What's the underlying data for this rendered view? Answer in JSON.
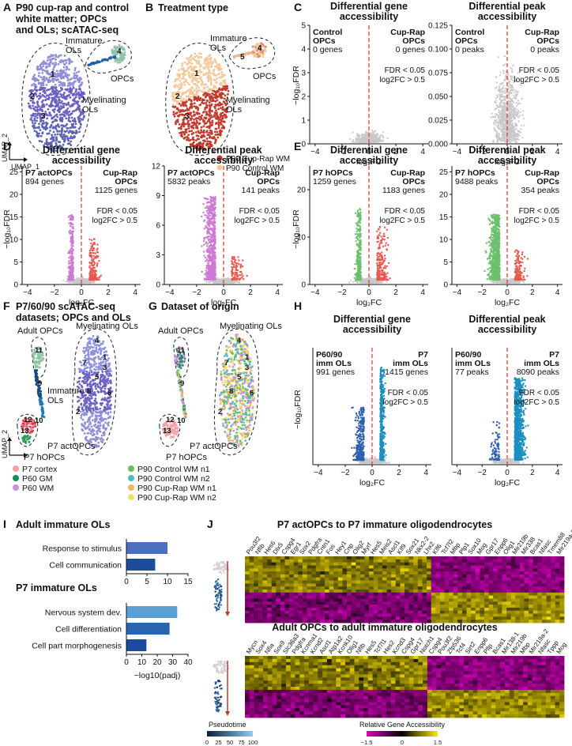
{
  "figure": {
    "A": {
      "letter": "A",
      "title": [
        "P90 cup-rap and control",
        "white matter; OPCs",
        "and OLs; scATAC-seq"
      ],
      "labels": {
        "immature": [
          "Immature",
          "OLs"
        ],
        "opcs": "OPCs",
        "myelinating": [
          "Myelinating",
          "OLs"
        ]
      },
      "clusters": [
        "1",
        "2",
        "3",
        "4"
      ],
      "axis_x": "UMAP_1",
      "axis_y": "UMAP_2"
    },
    "B": {
      "letter": "B",
      "title": "Treatment type",
      "labels": {
        "immature": [
          "Immature",
          "OLs"
        ],
        "opcs": "OPCs",
        "myelinating": [
          "Myelinating",
          "OLs"
        ]
      },
      "clusters": [
        "1",
        "2",
        "3",
        "4",
        "5"
      ],
      "legend": [
        {
          "label": "P90 Cup-Rap WM",
          "color": "#c0392b"
        },
        {
          "label": "P90 Control WM",
          "color": "#f5c89a"
        }
      ]
    },
    "C": {
      "letter": "C",
      "panels": [
        {
          "title": [
            "Differential gene",
            "accessibility"
          ],
          "left": [
            "Control",
            "OPCs",
            "0 genes"
          ],
          "right": [
            "Cup-Rap",
            "OPCs",
            "0 genes"
          ],
          "thresh": [
            "FDR < 0.05",
            "log2FC > 0.5"
          ],
          "yticks": [
            0,
            1,
            2,
            3,
            4,
            5
          ],
          "xticks": [
            "−4",
            "−2",
            "0",
            "2",
            "4"
          ]
        },
        {
          "title": [
            "Differential peak",
            "accessibility"
          ],
          "left": [
            "Control",
            "OPCs",
            "0 peaks"
          ],
          "right": [
            "Cup-Rap",
            "OPCs",
            "0 peaks"
          ],
          "thresh": [
            "FDR < 0.05",
            "log2FC > 0.5"
          ],
          "yticks": [
            "0.000",
            "0.025",
            "0.050",
            "0.075",
            "0.100",
            "0.125"
          ],
          "xticks": [
            "−4",
            "−2",
            "0",
            "2",
            "4"
          ]
        }
      ]
    },
    "D": {
      "letter": "D",
      "panels": [
        {
          "title": [
            "Differential gene",
            "accessibility"
          ],
          "left": [
            "P7 actOPCs",
            "894 genes"
          ],
          "right": [
            "Cup-Rap",
            "OPCs",
            "1125 genes"
          ],
          "thresh": [
            "FDR < 0.05",
            "log2FC > 0.5"
          ],
          "yticks": [
            0,
            5,
            10,
            15,
            20,
            25
          ],
          "xticks": [
            "−4",
            "−2",
            "0",
            "2",
            "4"
          ]
        },
        {
          "title": [
            "Differential peak",
            "accessibility"
          ],
          "left": [
            "P7 actOPCs",
            "5832 peaks"
          ],
          "right": [
            "Cup-Rap",
            "OPCs",
            "141 peaks"
          ],
          "thresh": [
            "FDR < 0.05",
            "log2FC > 0.5"
          ],
          "yticks": [
            0,
            3,
            6,
            9,
            12
          ],
          "xticks": [
            "−4",
            "−2",
            "0",
            "2",
            "4"
          ]
        }
      ]
    },
    "E": {
      "letter": "E",
      "panels": [
        {
          "title": [
            "Differential gene",
            "accessibility"
          ],
          "left": [
            "P7 hOPCs",
            "1259 genes"
          ],
          "right": [
            "Cup-Rap",
            "OPCs",
            "1183 genes"
          ],
          "thresh": [
            "FDR < 0.05",
            "log2FC > 0.5"
          ],
          "yticks": [
            0,
            10,
            20
          ],
          "xticks": [
            "−4",
            "−2",
            "0",
            "2",
            "4"
          ]
        },
        {
          "title": [
            "Differential peak",
            "accessibility"
          ],
          "left": [
            "P7 hOPCs",
            "9488 peaks"
          ],
          "right": [
            "Cup-Rap",
            "OPCs",
            "354 peaks"
          ],
          "thresh": [
            "FDR < 0.05",
            "log2FC > 0.5"
          ],
          "yticks": [
            0,
            5,
            10,
            15,
            20,
            25
          ],
          "xticks": [
            "−4",
            "−2",
            "0",
            "2",
            "4"
          ]
        }
      ]
    },
    "F": {
      "letter": "F",
      "title": [
        "P7/60/90 scATAC-seq",
        "datasets; OPCs and OLs"
      ],
      "labels": {
        "myelinating": "Myelinating OLs",
        "adult": "Adult OPCs",
        "immature": [
          "Immature",
          "OLs"
        ],
        "act": "P7 actOPCs",
        "h": "P7 hOPCs"
      },
      "clusters": [
        "1",
        "2",
        "3",
        "4",
        "5",
        "6",
        "7",
        "8",
        "9",
        "10",
        "11",
        "12",
        "13"
      ]
    },
    "G": {
      "letter": "G",
      "title": "Dataset of origin",
      "legend": [
        {
          "label": "P7 cortex",
          "color": "#f0a3a3"
        },
        {
          "label": "P60 GM",
          "color": "#1b8a5a"
        },
        {
          "label": "P60 WM",
          "color": "#cc8ee0"
        },
        {
          "label": "P90 Control WM n1",
          "color": "#6abf5a"
        },
        {
          "label": "P90 Control WM n2",
          "color": "#4fb8c9"
        },
        {
          "label": "P90 Cup-Rap WM n1",
          "color": "#f2b36b"
        },
        {
          "label": "P90 Cup-Rap WM n2",
          "color": "#f2e06a"
        }
      ]
    },
    "H": {
      "letter": "H",
      "panels": [
        {
          "title": [
            "Differential gene",
            "accessibility"
          ],
          "left": [
            "P60/90",
            "imm OLs",
            "991 genes"
          ],
          "right": [
            "P7",
            "imm OLs",
            "1415 genes"
          ],
          "thresh": [
            "FDR < 0.05",
            "log2FC > 0.5"
          ],
          "xticks": [
            "−4",
            "−2",
            "0",
            "2",
            "4"
          ]
        },
        {
          "title": [
            "Differential peak",
            "accessibility"
          ],
          "left": [
            "P60/90",
            "imm OLs",
            "77 peaks"
          ],
          "right": [
            "P7",
            "imm OLs",
            "8090 peaks"
          ],
          "thresh": [
            "FDR < 0.05",
            "log2FC > 0.5"
          ],
          "xticks": [
            "−4",
            "−2",
            "0",
            "2",
            "4"
          ]
        }
      ]
    },
    "I": {
      "letter": "I",
      "titles": [
        "Adult immature OLs",
        "P7 immature OLs"
      ],
      "xlabel": "−log10(padj)",
      "xticks_top": [
        "0",
        "5",
        "10",
        "15"
      ],
      "xticks_bottom": [
        "0",
        "10",
        "20",
        "30",
        "40"
      ]
    },
    "J": {
      "letter": "J",
      "titles": [
        "P7 actOPCs to P7 immature oligodendrocytes",
        "Adult OPCs to adult immature oligodendrocytes"
      ],
      "pseudotime_label": "Pseudotime",
      "pseudotime_ticks": [
        "0",
        "25",
        "50",
        "75",
        "100"
      ],
      "rga_label": "Relative Gene Accessibility",
      "rga_ticks": [
        "−1.5",
        "0",
        "1.5"
      ],
      "genes_top": [
        "Pou3f2",
        "Nfib",
        "Hes6",
        "Dlx5",
        "Cspg4",
        "Egr1",
        "Sox2",
        "Pdgfra",
        "Cntn1",
        "Fos",
        "Hey1",
        "Cnp",
        "Olig2",
        "Myrf",
        "Hes5",
        "Meis2",
        "Ascl1",
        "Klf9",
        "Sox21",
        "Nkx2-2",
        "Lhx2",
        "Klf6",
        "Tcf7l2",
        "Mbp",
        "Plp1",
        "Sox10",
        "Mog",
        "Gpr17",
        "Enpp6",
        "Olig1",
        "Mir219b",
        "Mir338",
        "Bcas1",
        "Nfasc",
        "Tmem88",
        "Mir219a-2"
      ],
      "genes_bottom": [
        "Mycn",
        "Sox4",
        "Nfia",
        "Sox9",
        "Slc38a3",
        "Pdgfra",
        "Kcnma1",
        "Kcnd2",
        "Ascl1",
        "Atp1a2",
        "Kcnk10",
        "Olig1",
        "Nfib",
        "Hes5",
        "Tcf7l1",
        "Hes2",
        "Kcnd3",
        "Cspg4",
        "Gpr17",
        "Notch1",
        "Cspg4",
        "Pou3f2",
        "Zfp536",
        "Tcf4",
        "Sirt2",
        "Enpp6",
        "Pllp",
        "Bcas1",
        "Mir138-1",
        "Mir219b",
        "Mbp",
        "Mir219a-2",
        "Nfasc",
        "Tppp",
        "Mog"
      ]
    }
  },
  "chart_data": [
    {
      "panel": "A",
      "type": "scatter",
      "title": "P90 cup-rap and control white matter; OPCs and OLs; scATAC-seq",
      "xlabel": "UMAP_1",
      "ylabel": "UMAP_2",
      "clusters": [
        "1",
        "2",
        "3",
        "4"
      ],
      "groups": [
        "Myelinating OLs",
        "Immature OLs",
        "OPCs"
      ]
    },
    {
      "panel": "B",
      "type": "scatter",
      "title": "Treatment type",
      "series": [
        {
          "name": "P90 Cup-Rap WM"
        },
        {
          "name": "P90 Control WM"
        }
      ]
    },
    {
      "panel": "C-genes",
      "type": "scatter",
      "title": "Differential gene accessibility",
      "xlabel": "log2FC",
      "ylabel": "−log10 FDR",
      "xlim": [
        -4,
        4
      ],
      "ylim": [
        0,
        5
      ],
      "counts": {
        "Control OPCs": 0,
        "Cup-Rap OPCs": 0
      }
    },
    {
      "panel": "C-peaks",
      "type": "scatter",
      "title": "Differential peak accessibility",
      "xlabel": "log2FC",
      "ylabel": "−log10 FDR",
      "xlim": [
        -4,
        4
      ],
      "ylim": [
        0,
        0.125
      ],
      "counts": {
        "Control OPCs": 0,
        "Cup-Rap OPCs": 0
      }
    },
    {
      "panel": "D-genes",
      "type": "scatter",
      "title": "Differential gene accessibility",
      "xlim": [
        -4,
        4
      ],
      "ylim": [
        0,
        25
      ],
      "counts": {
        "P7 actOPCs": 894,
        "Cup-Rap OPCs": 1125
      }
    },
    {
      "panel": "D-peaks",
      "type": "scatter",
      "title": "Differential peak accessibility",
      "xlim": [
        -4,
        4
      ],
      "ylim": [
        0,
        12
      ],
      "counts": {
        "P7 actOPCs": 5832,
        "Cup-Rap OPCs": 141
      }
    },
    {
      "panel": "E-genes",
      "type": "scatter",
      "title": "Differential gene accessibility",
      "xlim": [
        -4,
        4
      ],
      "ylim": [
        0,
        25
      ],
      "counts": {
        "P7 hOPCs": 1259,
        "Cup-Rap OPCs": 1183
      }
    },
    {
      "panel": "E-peaks",
      "type": "scatter",
      "title": "Differential peak accessibility",
      "xlim": [
        -4,
        4
      ],
      "ylim": [
        0,
        25
      ],
      "counts": {
        "P7 hOPCs": 9488,
        "Cup-Rap OPCs": 354
      }
    },
    {
      "panel": "H-genes",
      "type": "scatter",
      "title": "Differential gene accessibility",
      "xlim": [
        -4,
        4
      ],
      "counts": {
        "P60/90 imm OLs": 991,
        "P7 imm OLs": 1415
      }
    },
    {
      "panel": "H-peaks",
      "type": "scatter",
      "title": "Differential peak accessibility",
      "xlim": [
        -4,
        4
      ],
      "counts": {
        "P60/90 imm OLs": 77,
        "P7 imm OLs": 8090
      }
    },
    {
      "panel": "I",
      "type": "bar",
      "xlabel": "−log10(padj)",
      "series": [
        {
          "name": "Adult immature OLs",
          "categories": [
            "Response to stimulus",
            "Cell communication"
          ],
          "values": [
            10,
            7
          ],
          "xlim": [
            0,
            15
          ]
        },
        {
          "name": "P7 immature OLs",
          "categories": [
            "Nervous system dev.",
            "Cell differentiation",
            "Cell part morphogenesis"
          ],
          "values": [
            33,
            28,
            13
          ],
          "xlim": [
            0,
            40
          ]
        }
      ]
    },
    {
      "panel": "J",
      "type": "heatmap",
      "scale": [
        -1.5,
        0,
        1.5
      ],
      "colors": [
        "#e000c8",
        "#000000",
        "#ffe800"
      ]
    }
  ]
}
